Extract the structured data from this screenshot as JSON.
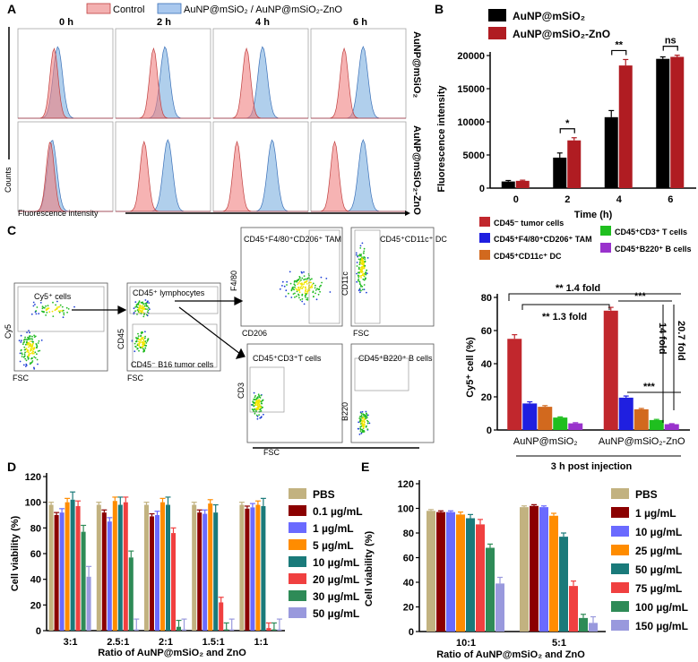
{
  "colors": {
    "control": "#f08080",
    "treated": "#6fa8dc",
    "b_series1": "#000000",
    "b_series2": "#b01c22",
    "c_cols": [
      "#c1272d",
      "#1f1fe0",
      "#d2691e",
      "#1fbf1f",
      "#9932cc"
    ],
    "d_cols": [
      "#c2b280",
      "#8b0000",
      "#6a6aff",
      "#ff8c00",
      "#1a7a7a",
      "#f04040",
      "#2e8b57",
      "#9999dd"
    ],
    "e_cols": [
      "#c2b280",
      "#8b0000",
      "#6a6aff",
      "#ff8c00",
      "#1a7a7a",
      "#f04040",
      "#2e8b57",
      "#9999dd"
    ]
  },
  "panel_a": {
    "letter": "A",
    "legend_control": "Control",
    "legend_treated": "AuNP@mSiO₂ / AuNP@mSiO₂-ZnO",
    "time_labels": [
      "0 h",
      "2 h",
      "4 h",
      "6 h"
    ],
    "row_labels": [
      "AuNP@mSiO₂",
      "AuNP@mSiO₂-ZnO"
    ],
    "ylabel": "Counts",
    "xlabel": "Fluorescence intensity"
  },
  "panel_c": {
    "letter": "C",
    "gates": {
      "cy5": "Cy5⁺ cells",
      "cd45": "CD45⁺ lymphocytes",
      "b16": "CD45⁻ B16 tumor cells",
      "tam": "CD45⁺F4/80⁺CD206⁺ TAM",
      "dc": "CD45⁺CD11c⁺ DC",
      "t": "CD45⁺CD3⁺T cells",
      "b": "CD45⁺B220⁺ B cells"
    },
    "axes": {
      "fsc": "FSC",
      "cy5": "Cy5",
      "cd45": "CD45",
      "f480": "F4/80",
      "cd206": "CD206",
      "cd11c": "CD11c",
      "cd3": "CD3",
      "b220": "B220"
    }
  },
  "chart_data": [
    {
      "panel": "B",
      "type": "bar",
      "categories": [
        "0",
        "2",
        "4",
        "6"
      ],
      "series": [
        {
          "name": "AuNP@mSiO₂",
          "values": [
            1000,
            4600,
            10700,
            19500
          ]
        },
        {
          "name": "AuNP@mSiO₂-ZnO",
          "values": [
            1100,
            7200,
            18500,
            19800
          ]
        }
      ],
      "errors": [
        [
          150,
          700,
          1000,
          300
        ],
        [
          100,
          400,
          900,
          250
        ]
      ],
      "significance": [
        "*",
        "**",
        "ns"
      ],
      "xlabel": "Time (h)",
      "ylabel": "Fluorescence intensity",
      "ylim": [
        0,
        20000
      ],
      "yticks": [
        "0",
        "5000",
        "10000",
        "15000",
        "20000"
      ]
    },
    {
      "panel": "C",
      "type": "bar",
      "categories": [
        "AuNP@mSiO₂",
        "AuNP@mSiO₂-ZnO"
      ],
      "series": [
        {
          "name": "CD45⁻ tumor cells",
          "values": [
            55,
            72
          ]
        },
        {
          "name": "CD45⁺F4/80⁺CD206⁺ TAM",
          "values": [
            16,
            19.5
          ]
        },
        {
          "name": "CD45⁺CD11c⁺ DC",
          "values": [
            14,
            12.5
          ]
        },
        {
          "name": "CD45⁺CD3⁺ T cells",
          "values": [
            7.5,
            6
          ]
        },
        {
          "name": "CD45⁺B220⁺ B cells",
          "values": [
            4,
            3.5
          ]
        }
      ],
      "errors": [
        [
          2.5,
          2
        ],
        [
          1,
          1
        ],
        [
          0.7,
          0.5
        ],
        [
          0.4,
          0.4
        ],
        [
          0.4,
          0.3
        ]
      ],
      "annotations": [
        "** 1.4 fold",
        "** 1.3 fold",
        "***",
        "***",
        "14 fold",
        "20.7 fold"
      ],
      "xlabel": "3 h post injection",
      "ylabel": "Cy5⁺ cell (%)",
      "ylim": [
        0,
        80
      ],
      "yticks": [
        "0",
        "20",
        "40",
        "60",
        "80"
      ]
    },
    {
      "panel": "D",
      "type": "bar",
      "categories": [
        "3:1",
        "2.5:1",
        "2:1",
        "1.5:1",
        "1:1"
      ],
      "series": [
        {
          "name": "PBS",
          "values": [
            98,
            98,
            98,
            98,
            98
          ]
        },
        {
          "name": "0.1 µg/mL",
          "values": [
            90,
            92,
            89,
            92,
            95
          ]
        },
        {
          "name": "1 µg/mL",
          "values": [
            92,
            85,
            90,
            91,
            96
          ]
        },
        {
          "name": "5 µg/mL",
          "values": [
            100,
            101,
            100,
            99,
            98
          ]
        },
        {
          "name": "10 µg/mL",
          "values": [
            102,
            98,
            98,
            92,
            97
          ]
        },
        {
          "name": "20 µg/mL",
          "values": [
            97,
            100,
            76,
            22,
            2
          ]
        },
        {
          "name": "30 µg/mL",
          "values": [
            77,
            57,
            3,
            1,
            1
          ]
        },
        {
          "name": "50 µg/mL",
          "values": [
            42,
            1,
            1,
            1,
            1
          ]
        }
      ],
      "xlabel": "Ratio of AuNP@mSiO₂ and ZnO",
      "ylabel": "Cell viability (%)",
      "ylim": [
        0,
        120
      ],
      "yticks": [
        "0",
        "20",
        "40",
        "60",
        "80",
        "100",
        "120"
      ]
    },
    {
      "panel": "E",
      "type": "bar",
      "categories": [
        "10:1",
        "5:1"
      ],
      "series": [
        {
          "name": "PBS",
          "values": [
            98,
            101
          ]
        },
        {
          "name": "1 µg/mL",
          "values": [
            97,
            102
          ]
        },
        {
          "name": "10 µg/mL",
          "values": [
            97,
            101
          ]
        },
        {
          "name": "25 µg/mL",
          "values": [
            95,
            94
          ]
        },
        {
          "name": "50 µg/mL",
          "values": [
            92,
            77
          ]
        },
        {
          "name": "75 µg/mL",
          "values": [
            87,
            37
          ]
        },
        {
          "name": "100 µg/mL",
          "values": [
            68,
            11
          ]
        },
        {
          "name": "150 µg/mL",
          "values": [
            39,
            7
          ]
        }
      ],
      "xlabel": "Ratio of AuNP@mSiO₂ and ZnO",
      "ylabel": "Cell viability (%)",
      "ylim": [
        0,
        120
      ],
      "yticks": [
        "0",
        "20",
        "40",
        "60",
        "80",
        "100",
        "120"
      ]
    }
  ]
}
